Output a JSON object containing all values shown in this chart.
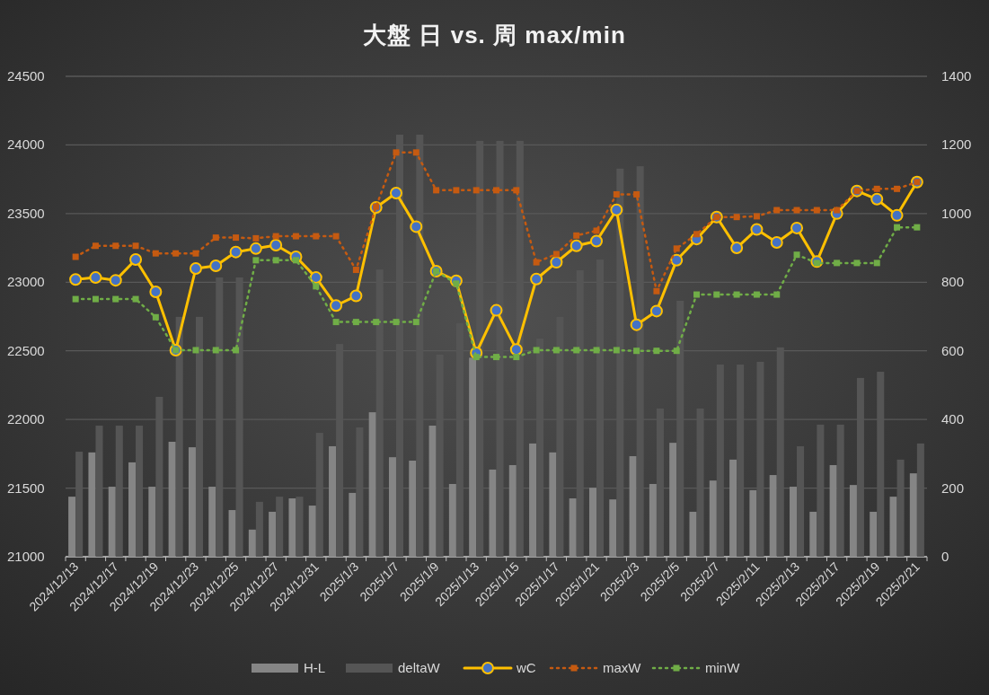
{
  "chart_data": {
    "type": "line",
    "title": "大盤 日 vs. 周 max/min",
    "categories": [
      "2024/12/13",
      null,
      "2024/12/17",
      null,
      "2024/12/19",
      null,
      "2024/12/23",
      null,
      "2024/12/25",
      null,
      "2024/12/27",
      null,
      "2024/12/31",
      null,
      "2025/1/3",
      null,
      "2025/1/7",
      null,
      "2025/1/9",
      null,
      "2025/1/13",
      null,
      "2025/1/15",
      null,
      "2025/1/17",
      null,
      "2025/1/21",
      null,
      "2025/2/3",
      null,
      "2025/2/5",
      null,
      "2025/2/7",
      null,
      "2025/2/11",
      null,
      "2025/2/13",
      null,
      "2025/2/17",
      null,
      "2025/2/19",
      null,
      "2025/2/21"
    ],
    "ylim": [
      21000,
      24500
    ],
    "yticks": [
      21000,
      21500,
      22000,
      22500,
      23000,
      23500,
      24000,
      24500
    ],
    "y2lim": [
      0,
      1400
    ],
    "y2ticks": [
      0,
      200,
      400,
      600,
      800,
      1000,
      1200,
      1400
    ],
    "grid": "y",
    "legend": "bottom",
    "series": [
      {
        "name": "H-L",
        "type": "bar",
        "axis": "y2",
        "color": "#858585",
        "values": [
          175,
          304,
          204,
          275,
          204,
          335,
          319,
          204,
          136,
          79,
          131,
          170,
          149,
          322,
          186,
          421,
          290,
          280,
          382,
          212,
          580,
          254,
          267,
          330,
          304,
          170,
          201,
          167,
          293,
          212,
          332,
          131,
          222,
          283,
          194,
          238,
          204,
          131,
          267,
          209,
          131,
          175,
          243
        ]
      },
      {
        "name": "deltaW",
        "type": "bar",
        "axis": "y2",
        "color": "#555555",
        "values": [
          306,
          382,
          382,
          382,
          466,
          699,
          699,
          814,
          814,
          160,
          175,
          175,
          361,
          620,
          377,
          837,
          1230,
          1230,
          589,
          680,
          1212,
          1212,
          1212,
          636,
          699,
          835,
          866,
          1131,
          1138,
          432,
          746,
          432,
          560,
          560,
          568,
          610,
          322,
          385,
          385,
          521,
          539,
          283,
          330
        ]
      },
      {
        "name": "wC",
        "color": "#ffc000",
        "marker": "circle",
        "line_style": "solid",
        "values": [
          23020,
          23034,
          23014,
          23165,
          22930,
          22505,
          23100,
          23120,
          23220,
          23245,
          23270,
          23185,
          23034,
          22830,
          22900,
          23545,
          23650,
          23405,
          23080,
          23010,
          22485,
          22795,
          22510,
          23023,
          23145,
          23265,
          23300,
          23527,
          22690,
          22790,
          23160,
          23315,
          23475,
          23250,
          23385,
          23290,
          23395,
          23150,
          23500,
          23665,
          23605,
          23487,
          23730
        ]
      },
      {
        "name": "maxW",
        "color": "#c55a11",
        "marker": "square",
        "line_style": "dotted",
        "values": [
          23185,
          23265,
          23265,
          23265,
          23210,
          23210,
          23210,
          23325,
          23325,
          23320,
          23335,
          23335,
          23335,
          23335,
          23090,
          23550,
          23945,
          23945,
          23670,
          23670,
          23670,
          23670,
          23670,
          23145,
          23205,
          23340,
          23375,
          23640,
          23640,
          22935,
          23245,
          23350,
          23475,
          23475,
          23480,
          23525,
          23525,
          23525,
          23525,
          23665,
          23680,
          23680,
          23730
        ]
      },
      {
        "name": "minW",
        "color": "#70ad47",
        "marker": "square",
        "line_style": "dotted",
        "values": [
          22877,
          22877,
          22877,
          22877,
          22745,
          22505,
          22505,
          22505,
          22505,
          23160,
          23160,
          23160,
          22970,
          22710,
          22710,
          22710,
          22710,
          22710,
          23080,
          22990,
          22455,
          22455,
          22455,
          22505,
          22505,
          22505,
          22505,
          22505,
          22500,
          22500,
          22500,
          22910,
          22910,
          22910,
          22910,
          22910,
          23200,
          23140,
          23140,
          23140,
          23140,
          23400,
          23400
        ]
      }
    ]
  }
}
